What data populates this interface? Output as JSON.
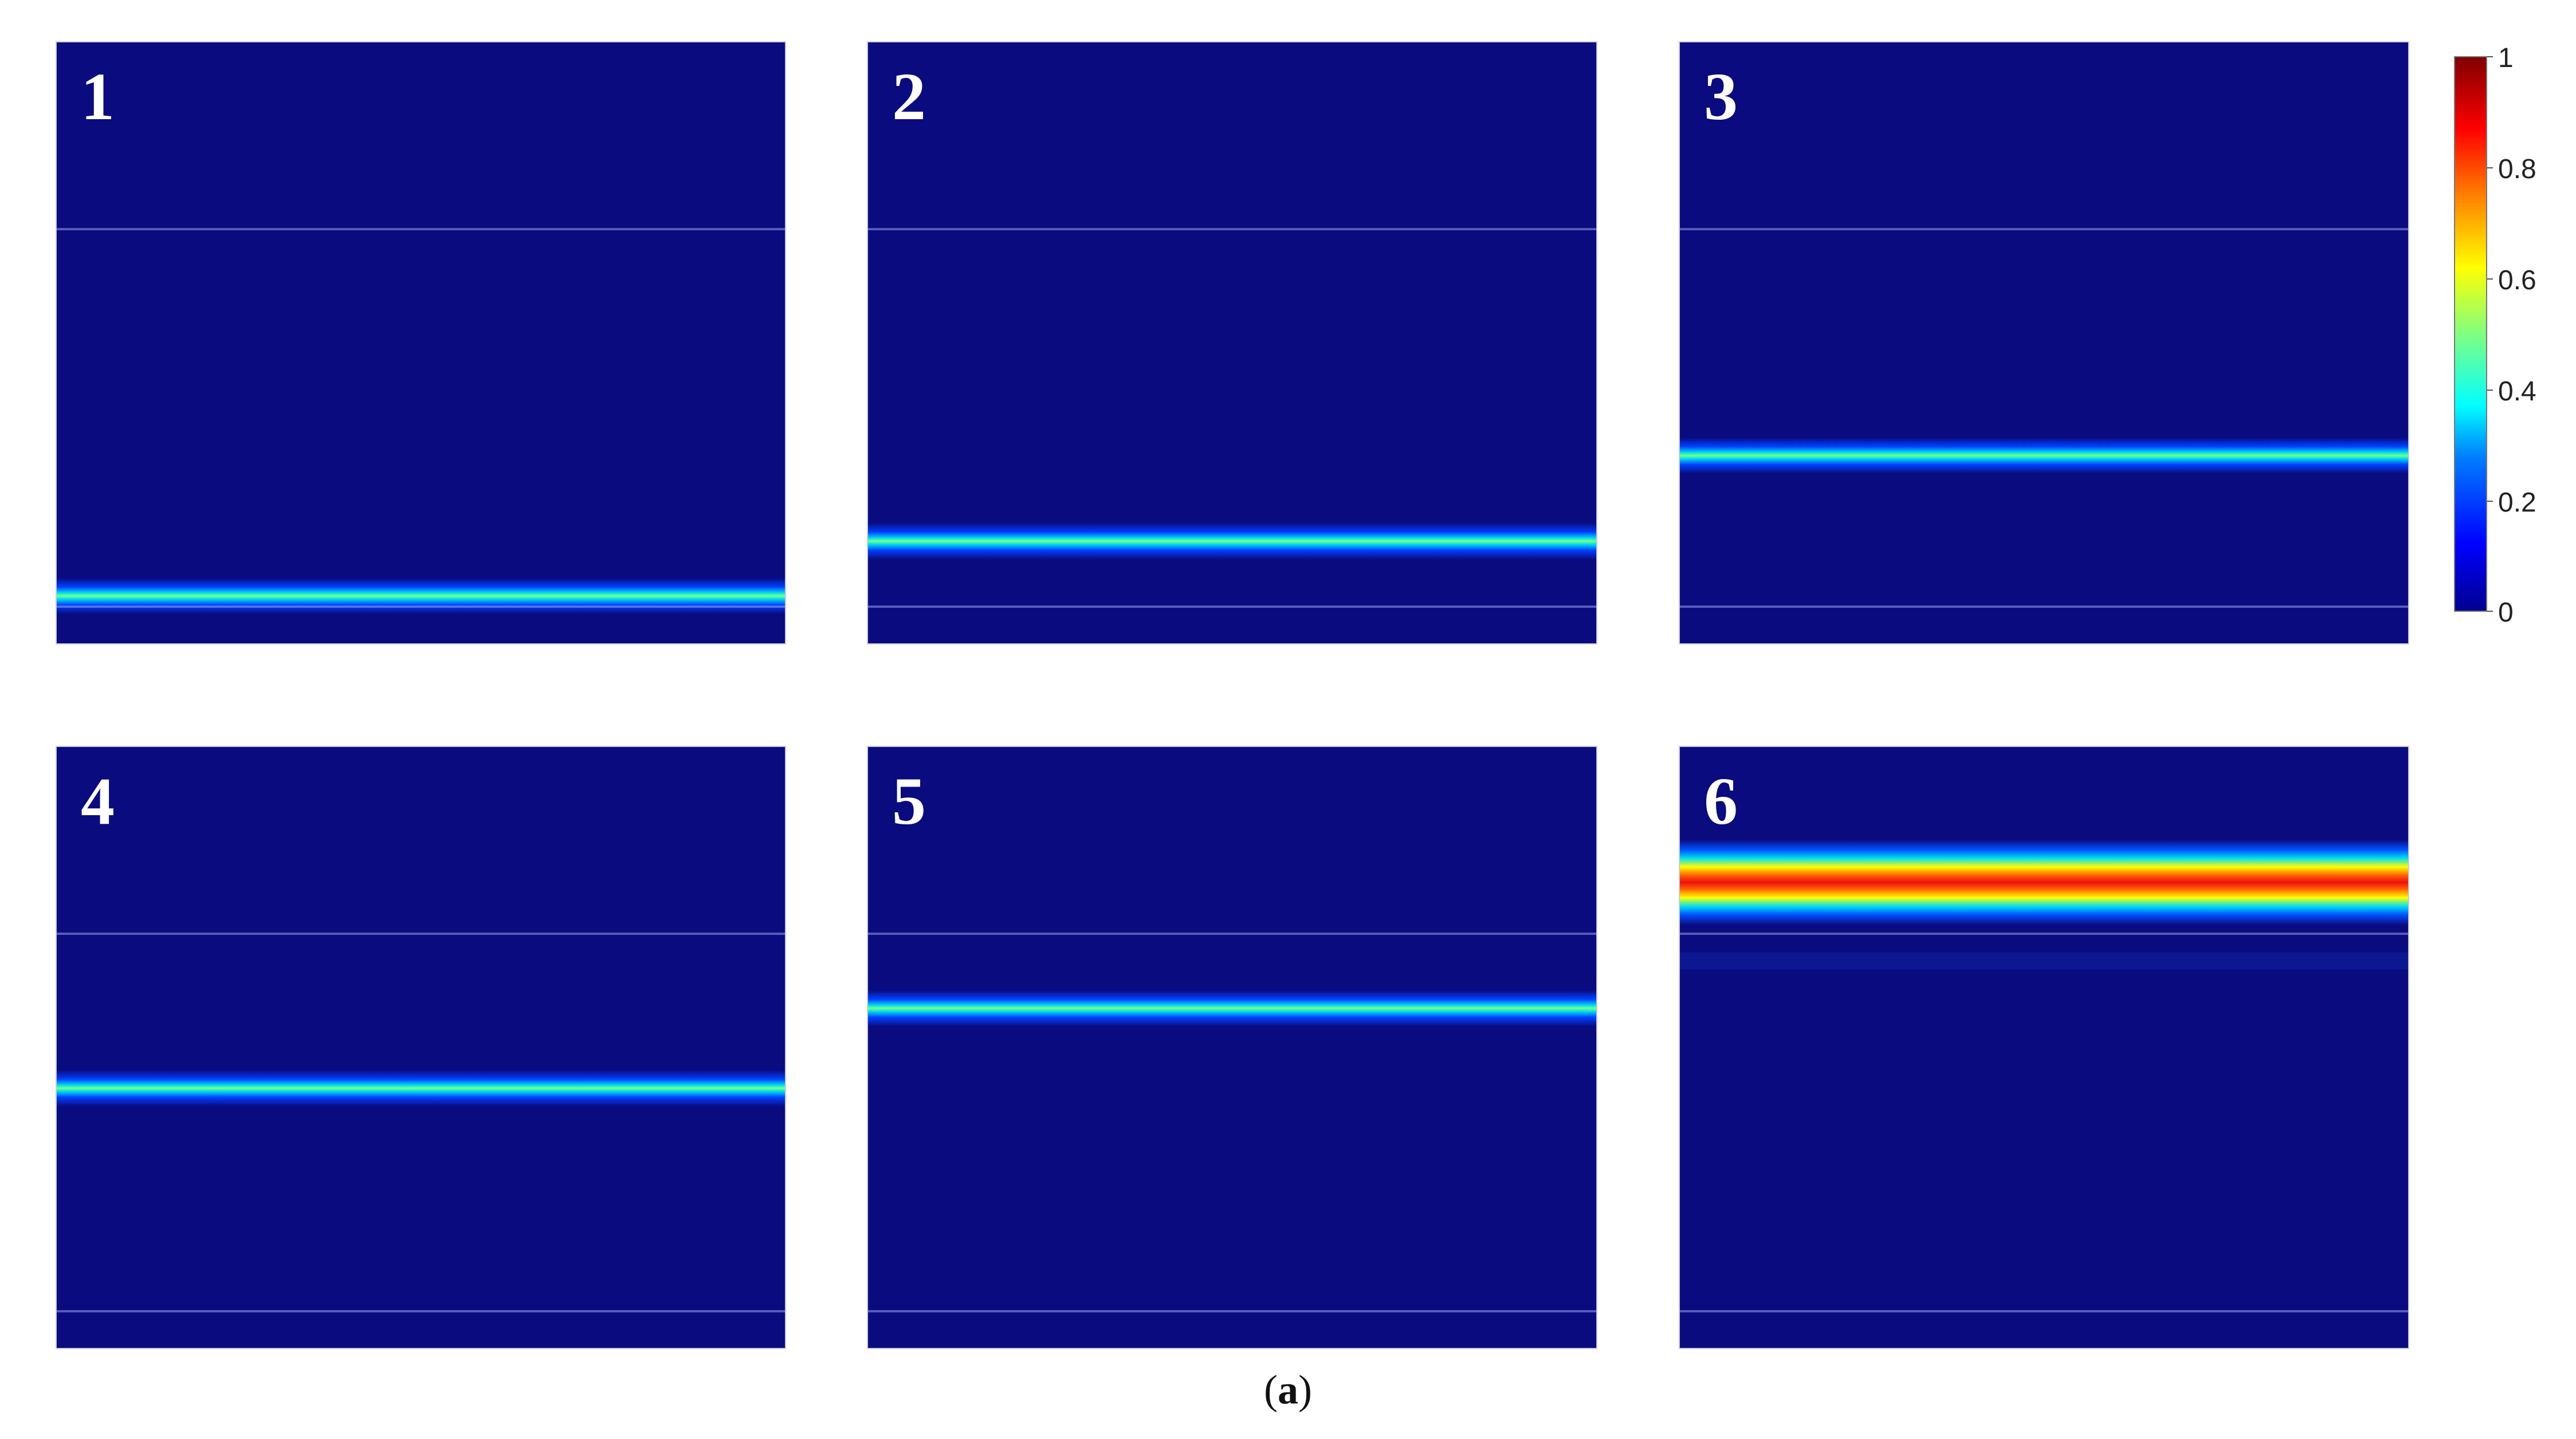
{
  "panels": [
    {
      "id": "p1",
      "label": "1",
      "band_level": 0.5,
      "band_color": "#ffffff"
    },
    {
      "id": "p2",
      "label": "2",
      "band_level": 0.5
    },
    {
      "id": "p3",
      "label": "3",
      "band_level": 0.5
    },
    {
      "id": "p4",
      "label": "4",
      "band_level": 0.5
    },
    {
      "id": "p5",
      "label": "5",
      "band_level": 0.5
    },
    {
      "id": "p6",
      "label": "6",
      "band_level": 1.0
    }
  ],
  "colorbar": {
    "min": 0,
    "max": 1,
    "ticks": [
      "1",
      "0.8",
      "0.6",
      "0.4",
      "0.2",
      "0"
    ],
    "colormap": "jet"
  },
  "caption": {
    "open": "(",
    "letter": "a",
    "close": ")"
  }
}
